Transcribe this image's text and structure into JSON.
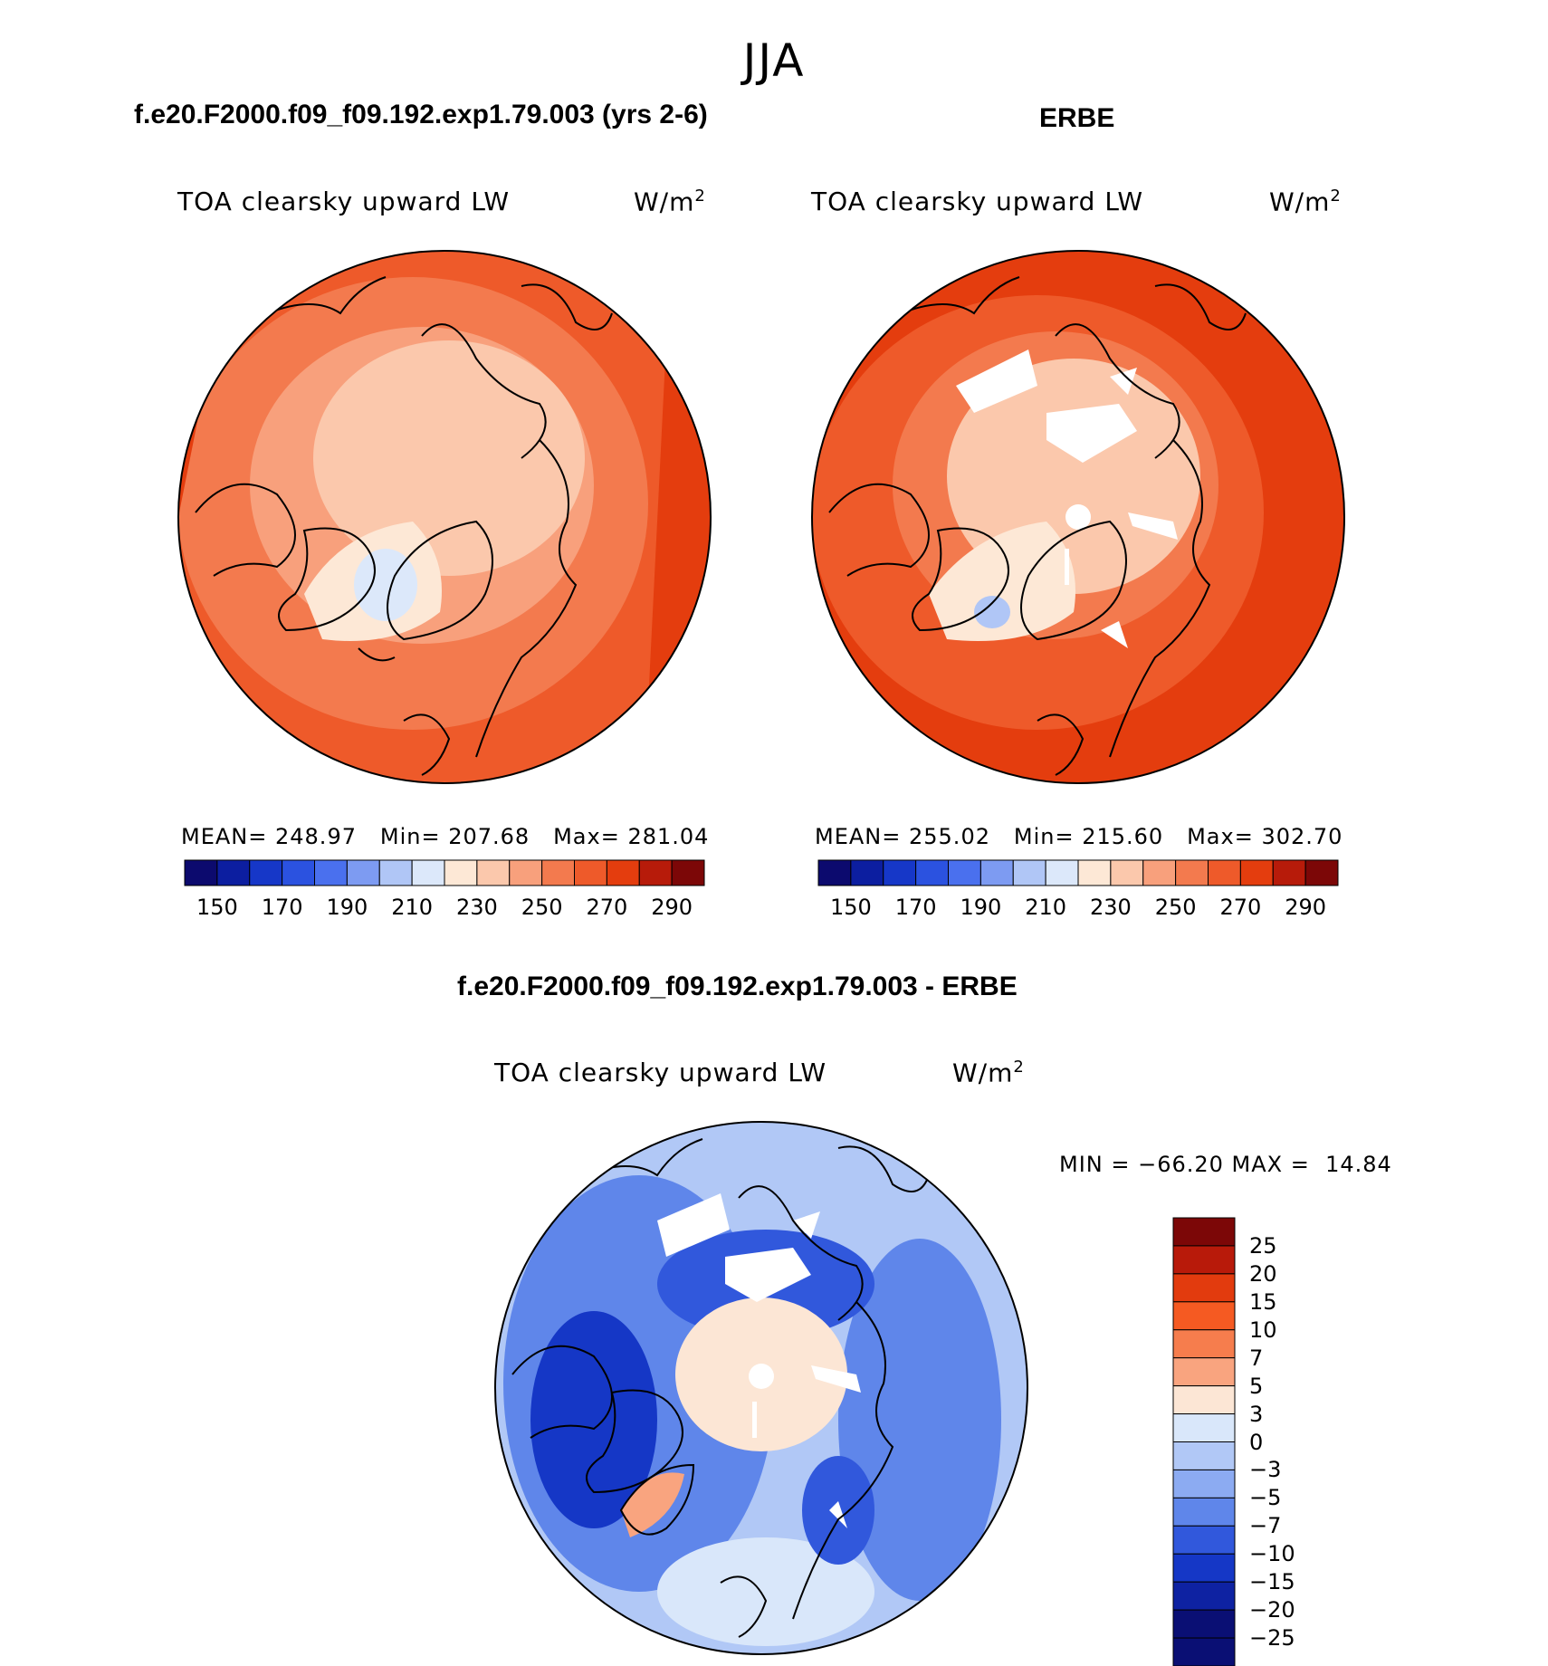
{
  "title": "JJA",
  "panels": [
    {
      "case_title": "f.e20.F2000.f09_f09.192.exp1.79.003 (yrs 2-6)",
      "variable": "TOA clearsky upward LW",
      "units": "W/m",
      "units_sup": "2",
      "stats": {
        "mean_label": "MEAN=",
        "mean": "248.97",
        "min_label": "Min=",
        "min": "207.68",
        "max_label": "Max=",
        "max": "281.04"
      }
    },
    {
      "case_title": "ERBE",
      "variable": "TOA clearsky upward LW",
      "units": "W/m",
      "units_sup": "2",
      "stats": {
        "mean_label": "MEAN=",
        "mean": "255.02",
        "min_label": "Min=",
        "min": "215.60",
        "max_label": "Max=",
        "max": "302.70"
      }
    }
  ],
  "abs_colorbar": {
    "colors": [
      "#0c0a6e",
      "#0c1ea0",
      "#1637c8",
      "#2b52e0",
      "#4a70ee",
      "#7d9bf2",
      "#b0c6f6",
      "#dce8fa",
      "#fde8d6",
      "#fbc8ac",
      "#f8a07c",
      "#f37a4e",
      "#ee5a2a",
      "#e43d0e",
      "#b71b0a",
      "#7c0707"
    ],
    "labels": [
      "150",
      "170",
      "190",
      "210",
      "230",
      "250",
      "270",
      "290"
    ]
  },
  "diff": {
    "case_title": "f.e20.F2000.f09_f09.192.exp1.79.003 - ERBE",
    "variable": "TOA clearsky upward LW",
    "units": "W/m",
    "units_sup": "2",
    "stats": "MIN = −66.20 MAX =  14.84",
    "colorbar": {
      "colors": [
        "#7c0707",
        "#b81a0a",
        "#e23b0e",
        "#f55a22",
        "#f67d4d",
        "#f9a47f",
        "#fce6d5",
        "#d9e7fa",
        "#b1c8f6",
        "#8cabf2",
        "#5f86ea",
        "#3158dc",
        "#1537c6",
        "#0e22a2",
        "#0a0f74"
      ],
      "labels": [
        "25",
        "20",
        "15",
        "10",
        "7",
        "5",
        "3",
        "0",
        "−3",
        "−5",
        "−7",
        "−10",
        "−15",
        "−20",
        "−25"
      ]
    }
  }
}
